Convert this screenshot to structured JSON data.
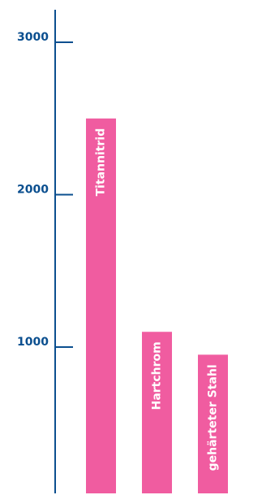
{
  "chart_data": {
    "type": "bar",
    "categories": [
      "Titannitrid",
      "Hartchrom",
      "gehärteter Stahl"
    ],
    "values": [
      2500,
      1100,
      950
    ],
    "yticks": [
      1000,
      2000,
      3000
    ],
    "ylim": [
      0,
      3250
    ],
    "grid": false,
    "colors": {
      "bar": "#f05ca0",
      "axis": "#0b4f8f",
      "label": "#ffffff"
    }
  }
}
